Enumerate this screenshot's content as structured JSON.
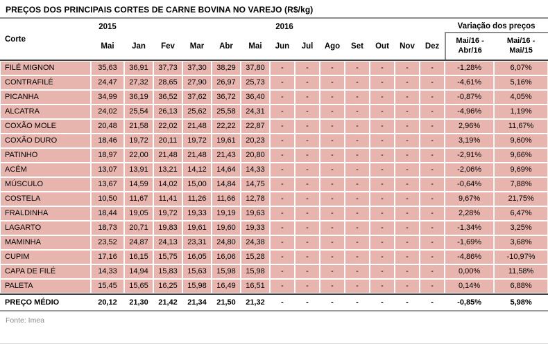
{
  "title": "PREÇOS DOS PRINCIPAIS CORTES DE CARNE BOVINA NO VAREJO (R$/kg)",
  "table": {
    "corte_header": "Corte",
    "year_2015": "2015",
    "year_2016": "2016",
    "variacao_header": "Variação dos preços",
    "months_2015": [
      "Mai"
    ],
    "months_2016": [
      "Jan",
      "Fev",
      "Mar",
      "Abr",
      "Mai",
      "Jun",
      "Jul",
      "Ago",
      "Set",
      "Out",
      "Nov",
      "Dez"
    ],
    "variacao_columns": [
      "Mai/16 - Abr/16",
      "Mai/16 - Mai/15"
    ],
    "no_data_placeholder": "-",
    "rows": [
      {
        "corte": "FILÉ MIGNON",
        "prices": [
          "35,63",
          "36,91",
          "37,73",
          "37,30",
          "38,29",
          "37,80"
        ],
        "var_mai16_abr16": "-1,28%",
        "var_mai16_mai15": "6,07%"
      },
      {
        "corte": "CONTRAFILÉ",
        "prices": [
          "24,47",
          "27,32",
          "28,65",
          "27,90",
          "26,97",
          "25,73"
        ],
        "var_mai16_abr16": "-4,61%",
        "var_mai16_mai15": "5,16%"
      },
      {
        "corte": "PICANHA",
        "prices": [
          "34,99",
          "36,19",
          "36,52",
          "37,62",
          "36,72",
          "36,40"
        ],
        "var_mai16_abr16": "-0,87%",
        "var_mai16_mai15": "4,05%"
      },
      {
        "corte": "ALCATRA",
        "prices": [
          "24,02",
          "25,54",
          "26,13",
          "25,62",
          "25,58",
          "24,31"
        ],
        "var_mai16_abr16": "-4,96%",
        "var_mai16_mai15": "1,19%"
      },
      {
        "corte": "COXÃO MOLE",
        "prices": [
          "20,48",
          "21,58",
          "22,02",
          "21,48",
          "22,22",
          "22,87"
        ],
        "var_mai16_abr16": "2,96%",
        "var_mai16_mai15": "11,67%"
      },
      {
        "corte": "COXÃO DURO",
        "prices": [
          "18,46",
          "19,72",
          "20,11",
          "19,72",
          "19,61",
          "20,23"
        ],
        "var_mai16_abr16": "3,19%",
        "var_mai16_mai15": "9,60%"
      },
      {
        "corte": "PATINHO",
        "prices": [
          "18,97",
          "22,00",
          "21,48",
          "21,48",
          "21,43",
          "20,80"
        ],
        "var_mai16_abr16": "-2,91%",
        "var_mai16_mai15": "9,66%"
      },
      {
        "corte": "ACÉM",
        "prices": [
          "13,07",
          "13,91",
          "13,21",
          "14,12",
          "14,64",
          "14,33"
        ],
        "var_mai16_abr16": "-2,06%",
        "var_mai16_mai15": "9,69%"
      },
      {
        "corte": "MÚSCULO",
        "prices": [
          "13,67",
          "14,59",
          "14,02",
          "15,00",
          "14,84",
          "14,75"
        ],
        "var_mai16_abr16": "-0,64%",
        "var_mai16_mai15": "7,88%"
      },
      {
        "corte": "COSTELA",
        "prices": [
          "10,50",
          "11,67",
          "11,41",
          "11,26",
          "11,66",
          "12,78"
        ],
        "var_mai16_abr16": "9,67%",
        "var_mai16_mai15": "21,75%"
      },
      {
        "corte": "FRALDINHA",
        "prices": [
          "18,44",
          "19,05",
          "19,72",
          "19,33",
          "19,19",
          "19,63"
        ],
        "var_mai16_abr16": "2,28%",
        "var_mai16_mai15": "6,47%"
      },
      {
        "corte": "LAGARTO",
        "prices": [
          "18,73",
          "20,71",
          "19,83",
          "19,61",
          "19,60",
          "19,33"
        ],
        "var_mai16_abr16": "-1,34%",
        "var_mai16_mai15": "3,25%"
      },
      {
        "corte": "MAMINHA",
        "prices": [
          "23,52",
          "24,87",
          "24,13",
          "23,31",
          "24,80",
          "24,38"
        ],
        "var_mai16_abr16": "-1,69%",
        "var_mai16_mai15": "3,68%"
      },
      {
        "corte": "CUPIM",
        "prices": [
          "17,16",
          "16,15",
          "15,75",
          "16,05",
          "16,06",
          "15,28"
        ],
        "var_mai16_abr16": "-4,86%",
        "var_mai16_mai15": "-10,97%"
      },
      {
        "corte": "CAPA DE FILÉ",
        "prices": [
          "14,33",
          "14,94",
          "15,83",
          "15,63",
          "15,98",
          "15,98"
        ],
        "var_mai16_abr16": "0,00%",
        "var_mai16_mai15": "11,58%"
      },
      {
        "corte": "PALETA",
        "prices": [
          "15,45",
          "15,65",
          "16,25",
          "15,98",
          "16,49",
          "16,51"
        ],
        "var_mai16_abr16": "0,14%",
        "var_mai16_mai15": "6,88%"
      }
    ],
    "average_row": {
      "corte": "PREÇO MÉDIO",
      "prices": [
        "20,12",
        "21,30",
        "21,42",
        "21,34",
        "21,50",
        "21,32"
      ],
      "var_mai16_abr16": "-0,85%",
      "var_mai16_mai15": "5,98%"
    }
  },
  "footer": {
    "source": "Fonte: Imea"
  },
  "colors": {
    "row_background": "#e7b5ad",
    "rule_dark": "#404040",
    "rule_gray": "#999999",
    "header_rule": "#8c8c8c",
    "source_text": "#8a8a8a"
  }
}
